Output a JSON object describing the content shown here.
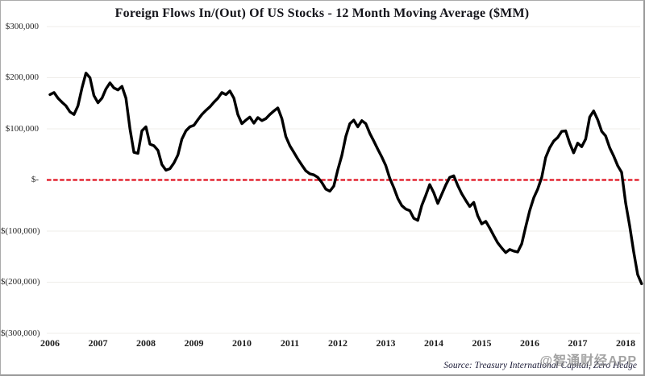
{
  "window": {
    "background_color": "#ffffff",
    "border_color": "#ababab"
  },
  "chart": {
    "title": "Foreign Flows In/(Out) Of US Stocks  - 12 Month Moving Average ($MM)",
    "source_note": "Source: Treasury International Capital, Zero Hedge",
    "watermark": "@智通财经APP",
    "colors": {
      "series_line": "#000000",
      "zero_dashed_line": "#e0101e",
      "gridline": "#efede9",
      "title_text": "#15151b",
      "axis_text": "#262626",
      "source_text": "#1c1c38",
      "watermark_text": "#8c8c8c"
    }
  },
  "chart_data": {
    "type": "line",
    "title": "Foreign Flows In/(Out) Of US Stocks - 12 Month Moving Average ($MM)",
    "xlabel": "",
    "ylabel": "",
    "y_unit": "$MM",
    "ylim": [
      -300000,
      300000
    ],
    "grid": "horizontal-only",
    "legend": "none",
    "zero_reference_line": {
      "shown": true,
      "style": "dashed",
      "color": "#e0101e",
      "value": 0
    },
    "y_ticks": [
      {
        "value": 300000,
        "label": "$300,000"
      },
      {
        "value": 200000,
        "label": "$200,000"
      },
      {
        "value": 100000,
        "label": "$100,000"
      },
      {
        "value": 0,
        "label": "$-"
      },
      {
        "value": -100000,
        "label": "$(100,000)"
      },
      {
        "value": -200000,
        "label": "$(200,000)"
      },
      {
        "value": -300000,
        "label": "$(300,000)"
      }
    ],
    "x_ticks": [
      "2006",
      "2007",
      "2008",
      "2009",
      "2010",
      "2011",
      "2012",
      "2013",
      "2014",
      "2015",
      "2016",
      "2017",
      "2018"
    ],
    "x_start": "2006-01",
    "x_end": "2018-05",
    "frequency": "monthly",
    "series": [
      {
        "name": "Foreign flows into US stocks, 12-month moving average ($MM)",
        "values": [
          167000,
          171000,
          160000,
          152000,
          145000,
          133000,
          128000,
          145000,
          180000,
          209000,
          200000,
          165000,
          151000,
          160000,
          178000,
          190000,
          180000,
          176000,
          183000,
          160000,
          100000,
          54000,
          52000,
          96000,
          104000,
          70000,
          67000,
          58000,
          30000,
          19000,
          22000,
          33000,
          49000,
          80000,
          96000,
          104000,
          107000,
          118000,
          128000,
          136000,
          143000,
          152000,
          160000,
          171000,
          167000,
          174000,
          160000,
          128000,
          110000,
          117000,
          123000,
          111000,
          122000,
          116000,
          120000,
          128000,
          135000,
          141000,
          120000,
          85000,
          67000,
          54000,
          41000,
          29000,
          18000,
          12000,
          10000,
          5000,
          -5000,
          -18000,
          -22000,
          -12000,
          20000,
          48000,
          85000,
          110000,
          117000,
          104000,
          116000,
          110000,
          91000,
          76000,
          60000,
          45000,
          28000,
          3000,
          -15000,
          -36000,
          -50000,
          -57000,
          -60000,
          -75000,
          -79000,
          -50000,
          -30000,
          -9000,
          -25000,
          -46000,
          -28000,
          -10000,
          5000,
          8000,
          -11000,
          -27000,
          -40000,
          -52000,
          -44000,
          -70000,
          -86000,
          -81000,
          -94000,
          -109000,
          -123000,
          -133000,
          -142000,
          -136000,
          -139000,
          -141000,
          -125000,
          -92000,
          -60000,
          -35000,
          -18000,
          5000,
          44000,
          63000,
          76000,
          83000,
          95000,
          96000,
          72000,
          53000,
          72000,
          65000,
          80000,
          123000,
          135000,
          118000,
          95000,
          86000,
          63000,
          47000,
          28000,
          15000,
          -45000,
          -90000,
          -140000,
          -185000,
          -203000
        ]
      }
    ]
  }
}
